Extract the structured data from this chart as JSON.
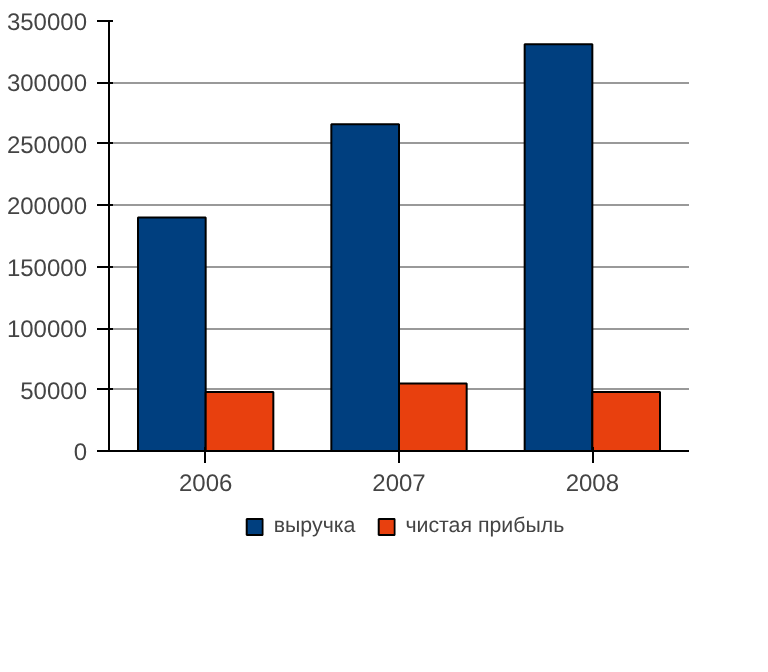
{
  "chart_data": {
    "type": "bar",
    "categories": [
      "2006",
      "2007",
      "2008"
    ],
    "series": [
      {
        "name": "выручка",
        "color": "#003f7f",
        "values": [
          190000,
          266000,
          331000
        ]
      },
      {
        "name": "чистая прибыль",
        "color": "#e8400e",
        "values": [
          48000,
          55000,
          48000
        ]
      }
    ],
    "ylim": [
      0,
      350000
    ],
    "yticks": [
      0,
      50000,
      100000,
      150000,
      200000,
      250000,
      300000,
      350000
    ],
    "grid": "y",
    "legend": "bottom"
  }
}
